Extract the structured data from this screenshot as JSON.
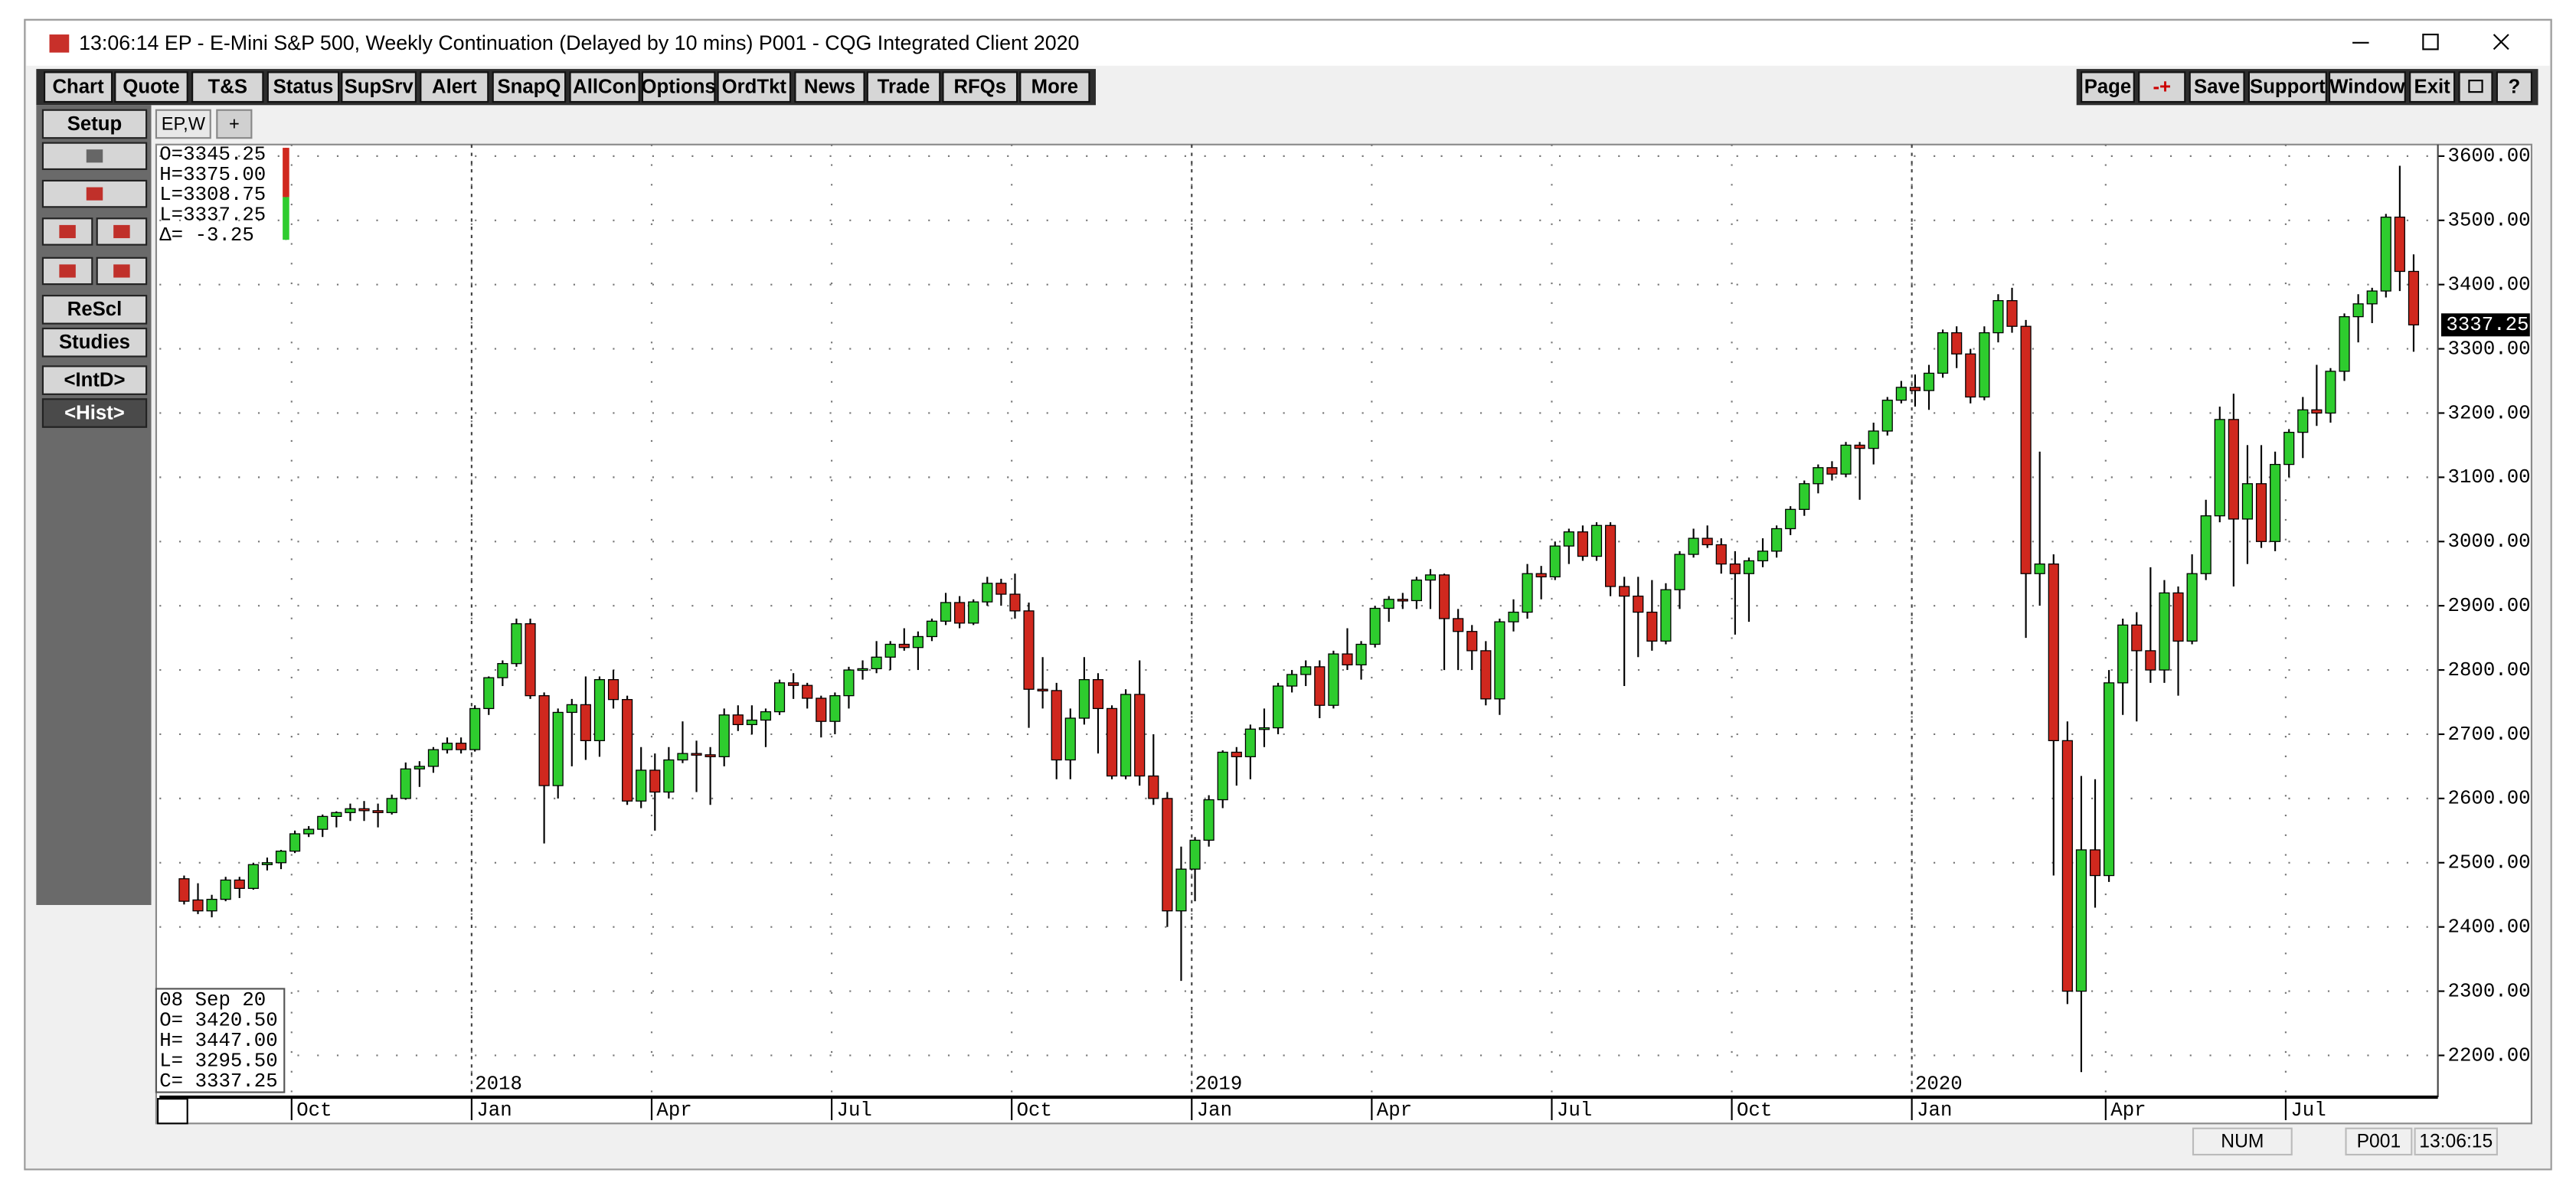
{
  "window": {
    "title": "13:06:14   EP - E-Mini S&P 500, Weekly Continuation (Delayed by 10 mins)   P001 - CQG Integrated Client 2020"
  },
  "toolbar": {
    "left": [
      "Chart",
      "Quote",
      "T&S",
      "Status",
      "SupSrv",
      "Alert",
      "SnapQ",
      "AllCon",
      "Options",
      "OrdTkt",
      "News",
      "Trade",
      "RFQs",
      "More"
    ],
    "right": [
      "Page",
      "-+",
      "Save",
      "Support",
      "Window",
      "Exit",
      "?"
    ]
  },
  "side_buttons": [
    "Setup",
    "ReScl",
    "Studies",
    "<IntD>",
    "<Hist>"
  ],
  "tabs": [
    "EP,W",
    "+"
  ],
  "status": [
    "NUM",
    "P001",
    "13:06:15"
  ],
  "chart_data": {
    "type": "candlestick",
    "up_color": "#2ecc2e",
    "down_color": "#d0281e",
    "info_top": [
      "O=3345.25",
      "H=3375.00",
      "L=3308.75",
      "L=3337.25",
      "Δ=   -3.25"
    ],
    "info_bottom": [
      "08 Sep 20",
      "O=  3420.50",
      "H=  3447.00",
      "L=  3295.50",
      "C=  3337.25"
    ],
    "last_price_label": "3337.25",
    "xtick_labels": [
      "Oct",
      "Jan",
      "Apr",
      "Jul",
      "Oct",
      "Jan",
      "Apr",
      "Jul",
      "Oct",
      "Jan",
      "Apr",
      "Jul"
    ],
    "year_labels": [
      "2018",
      "2019",
      "2020"
    ],
    "ylim": [
      2135,
      3618
    ],
    "yticks": [
      {
        "value": 2200,
        "label": "2200.00"
      },
      {
        "value": 2300,
        "label": "2300.00"
      },
      {
        "value": 2400,
        "label": "2400.00"
      },
      {
        "value": 2500,
        "label": "2500.00"
      },
      {
        "value": 2600,
        "label": "2600.00"
      },
      {
        "value": 2700,
        "label": "2700.00"
      },
      {
        "value": 2800,
        "label": "2800.00"
      },
      {
        "value": 2900,
        "label": "2900.00"
      },
      {
        "value": 3000,
        "label": "3000.00"
      },
      {
        "value": 3100,
        "label": "3100.00"
      },
      {
        "value": 3200,
        "label": "3200.00"
      },
      {
        "value": 3300,
        "label": "3300.00"
      },
      {
        "value": 3400,
        "label": "3400.00"
      },
      {
        "value": 3500,
        "label": "3500.00"
      },
      {
        "value": 3600,
        "label": "3600.00"
      }
    ],
    "grid": true,
    "open": [
      2475,
      2442,
      2425,
      2443,
      2473,
      2460,
      2497,
      2500,
      2518,
      2545,
      2552,
      2572,
      2578,
      2584,
      2581,
      2578,
      2600,
      2646,
      2650,
      2676,
      2686,
      2676,
      2740,
      2788,
      2810,
      2872,
      2760,
      2620,
      2734,
      2746,
      2690,
      2785,
      2754,
      2596,
      2644,
      2610,
      2660,
      2670,
      2668,
      2665,
      2730,
      2715,
      2722,
      2735,
      2780,
      2776,
      2756,
      2720,
      2760,
      2800,
      2802,
      2820,
      2840,
      2835,
      2852,
      2876,
      2905,
      2873,
      2906,
      2935,
      2918,
      2892,
      2770,
      2768,
      2660,
      2725,
      2785,
      2740,
      2635,
      2762,
      2635,
      2600,
      2425,
      2490,
      2535,
      2598,
      2672,
      2665,
      2708,
      2710,
      2775,
      2793,
      2805,
      2745,
      2825,
      2808,
      2840,
      2896,
      2910,
      2908,
      2940,
      2948,
      2880,
      2860,
      2830,
      2755,
      2875,
      2890,
      2950,
      2945,
      2993,
      3015,
      2977,
      3025,
      2930,
      2915,
      2890,
      2845,
      2925,
      2980,
      3005,
      2995,
      2965,
      2950,
      2970,
      2985,
      3020,
      3050,
      3090,
      3115,
      3105,
      3150,
      3145,
      3172,
      3220,
      3240,
      3235,
      3262,
      3325,
      3292,
      3225,
      3325,
      3375,
      3335,
      2950,
      2965,
      2690,
      2300,
      2520,
      2480,
      2780,
      2870,
      2830,
      2800,
      2920,
      2845,
      2950,
      3040,
      3190,
      3035,
      3090,
      3000,
      3120,
      3170,
      3205,
      3200,
      3265,
      3350,
      3370,
      3390,
      3505,
      3420.5
    ],
    "high": [
      2480,
      2468,
      2450,
      2478,
      2478,
      2500,
      2508,
      2520,
      2550,
      2557,
      2575,
      2580,
      2592,
      2596,
      2592,
      2606,
      2656,
      2658,
      2680,
      2695,
      2695,
      2745,
      2790,
      2815,
      2880,
      2880,
      2765,
      2740,
      2755,
      2790,
      2790,
      2800,
      2760,
      2680,
      2670,
      2680,
      2720,
      2690,
      2680,
      2740,
      2745,
      2745,
      2740,
      2785,
      2795,
      2780,
      2760,
      2765,
      2805,
      2815,
      2845,
      2845,
      2865,
      2860,
      2880,
      2920,
      2915,
      2910,
      2945,
      2942,
      2950,
      2905,
      2820,
      2780,
      2740,
      2820,
      2795,
      2745,
      2770,
      2815,
      2700,
      2610,
      2525,
      2540,
      2605,
      2675,
      2680,
      2715,
      2740,
      2780,
      2800,
      2815,
      2815,
      2830,
      2865,
      2845,
      2900,
      2915,
      2920,
      2945,
      2957,
      2950,
      2895,
      2870,
      2845,
      2880,
      2910,
      2965,
      2962,
      3000,
      3020,
      3025,
      3030,
      3030,
      2945,
      2945,
      2940,
      2935,
      2985,
      3020,
      3025,
      3005,
      2985,
      2975,
      3005,
      3025,
      3055,
      3095,
      3120,
      3125,
      3155,
      3155,
      3185,
      3225,
      3250,
      3260,
      3275,
      3330,
      3335,
      3300,
      3335,
      3385,
      3395,
      3345,
      3140,
      2980,
      2720,
      2635,
      2630,
      2800,
      2880,
      2890,
      2960,
      2940,
      2930,
      2980,
      3065,
      3210,
      3230,
      3150,
      3150,
      3140,
      3175,
      3225,
      3275,
      3270,
      3355,
      3385,
      3395,
      3510,
      3585,
      3447
    ],
    "low": [
      2435,
      2420,
      2415,
      2440,
      2445,
      2458,
      2488,
      2490,
      2515,
      2540,
      2540,
      2555,
      2565,
      2565,
      2555,
      2575,
      2598,
      2618,
      2640,
      2670,
      2670,
      2673,
      2730,
      2775,
      2805,
      2755,
      2530,
      2600,
      2650,
      2660,
      2665,
      2740,
      2590,
      2585,
      2550,
      2600,
      2655,
      2610,
      2590,
      2650,
      2705,
      2700,
      2680,
      2730,
      2755,
      2740,
      2695,
      2700,
      2740,
      2785,
      2795,
      2800,
      2830,
      2800,
      2845,
      2870,
      2865,
      2870,
      2900,
      2900,
      2880,
      2710,
      2740,
      2630,
      2630,
      2715,
      2670,
      2630,
      2630,
      2620,
      2590,
      2400,
      2316,
      2440,
      2525,
      2585,
      2620,
      2630,
      2680,
      2700,
      2765,
      2775,
      2725,
      2740,
      2800,
      2785,
      2835,
      2875,
      2895,
      2895,
      2895,
      2800,
      2800,
      2800,
      2745,
      2730,
      2860,
      2880,
      2910,
      2940,
      2965,
      2970,
      2970,
      2915,
      2775,
      2820,
      2830,
      2840,
      2895,
      2975,
      2990,
      2950,
      2855,
      2875,
      2960,
      2975,
      3010,
      3040,
      3075,
      3095,
      3100,
      3065,
      3120,
      3165,
      3215,
      3210,
      3205,
      3255,
      3270,
      3215,
      3220,
      3310,
      3325,
      2850,
      2900,
      2480,
      2280,
      2174,
      2430,
      2470,
      2730,
      2720,
      2780,
      2780,
      2760,
      2840,
      2940,
      3030,
      2930,
      2965,
      2990,
      2985,
      3100,
      3130,
      3180,
      3185,
      3250,
      3310,
      3340,
      3380,
      3390,
      3295.5
    ],
    "close": [
      2440,
      2425,
      2443,
      2473,
      2460,
      2497,
      2500,
      2518,
      2545,
      2552,
      2572,
      2578,
      2584,
      2581,
      2578,
      2600,
      2646,
      2650,
      2676,
      2686,
      2676,
      2740,
      2788,
      2810,
      2872,
      2760,
      2620,
      2734,
      2746,
      2690,
      2785,
      2754,
      2596,
      2644,
      2610,
      2660,
      2670,
      2668,
      2665,
      2730,
      2715,
      2722,
      2735,
      2780,
      2776,
      2756,
      2720,
      2760,
      2800,
      2802,
      2820,
      2840,
      2835,
      2852,
      2876,
      2905,
      2873,
      2906,
      2935,
      2918,
      2892,
      2770,
      2768,
      2660,
      2725,
      2785,
      2740,
      2635,
      2762,
      2635,
      2600,
      2425,
      2490,
      2535,
      2598,
      2672,
      2665,
      2708,
      2710,
      2775,
      2793,
      2805,
      2745,
      2825,
      2808,
      2840,
      2896,
      2910,
      2908,
      2940,
      2948,
      2880,
      2860,
      2830,
      2755,
      2875,
      2890,
      2950,
      2945,
      2993,
      3015,
      2977,
      3025,
      2930,
      2915,
      2890,
      2845,
      2925,
      2980,
      3005,
      2995,
      2965,
      2950,
      2970,
      2985,
      3020,
      3050,
      3090,
      3115,
      3105,
      3150,
      3145,
      3172,
      3220,
      3240,
      3235,
      3262,
      3325,
      3292,
      3225,
      3325,
      3375,
      3335,
      2950,
      2965,
      2690,
      2300,
      2520,
      2480,
      2780,
      2870,
      2830,
      2800,
      2920,
      2845,
      2950,
      3040,
      3190,
      3035,
      3090,
      3000,
      3120,
      3170,
      3205,
      3200,
      3265,
      3350,
      3370,
      3390,
      3505,
      3420.5,
      3337.25
    ]
  }
}
